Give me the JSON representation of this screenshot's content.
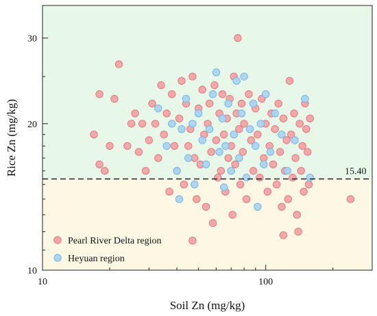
{
  "chart_data": {
    "type": "scatter",
    "title": "",
    "xlabel": "Soil Zn (mg/kg)",
    "ylabel": "Rice Zn (mg/kg)",
    "xscale": "log",
    "yscale": "log",
    "xlim": [
      10,
      300
    ],
    "ylim": [
      10,
      35
    ],
    "x_ticks": [
      10,
      100
    ],
    "x_tick_labels": [
      "10",
      "100"
    ],
    "y_ticks": [
      10,
      20,
      30
    ],
    "y_tick_labels": [
      "10",
      "20",
      "30"
    ],
    "grid": false,
    "legend_position": "bottom-left",
    "colors": {
      "above_region": "#e8f8e8",
      "below_region": "#fdf8e3",
      "pearl_fill": "#f4a3a5",
      "pearl_stroke": "#e07b80",
      "heyuan_fill": "#a9d4f2",
      "heyuan_stroke": "#79b6e3"
    },
    "threshold": {
      "value": 15.4,
      "label": "15.40"
    },
    "series": [
      {
        "name": "Pearl River Delta region",
        "points": [
          [
            17,
            19
          ],
          [
            18,
            23
          ],
          [
            19,
            16
          ],
          [
            20,
            18
          ],
          [
            21,
            22.5
          ],
          [
            22,
            26.5
          ],
          [
            18,
            16.5
          ],
          [
            24,
            18
          ],
          [
            25,
            20
          ],
          [
            26,
            21
          ],
          [
            27,
            17.5
          ],
          [
            28,
            20
          ],
          [
            29,
            16
          ],
          [
            30,
            18.5
          ],
          [
            31,
            22
          ],
          [
            32,
            20
          ],
          [
            33,
            17
          ],
          [
            34,
            24
          ],
          [
            35,
            19
          ],
          [
            36,
            21
          ],
          [
            37,
            14.5
          ],
          [
            38,
            23
          ],
          [
            39,
            18
          ],
          [
            40,
            16
          ],
          [
            41,
            20.5
          ],
          [
            42,
            24.5
          ],
          [
            43,
            15
          ],
          [
            44,
            22
          ],
          [
            45,
            18
          ],
          [
            46,
            19.5
          ],
          [
            47,
            25
          ],
          [
            48,
            17
          ],
          [
            49,
            14
          ],
          [
            50,
            21.5
          ],
          [
            51,
            16.5
          ],
          [
            52,
            23.5
          ],
          [
            53,
            19
          ],
          [
            54,
            13.5
          ],
          [
            55,
            20
          ],
          [
            56,
            22
          ],
          [
            57,
            17.5
          ],
          [
            58,
            12.5
          ],
          [
            59,
            24
          ],
          [
            60,
            18.5
          ],
          [
            61,
            15.5
          ],
          [
            62,
            21
          ],
          [
            63,
            16
          ],
          [
            64,
            23
          ],
          [
            65,
            19
          ],
          [
            66,
            14.5
          ],
          [
            67,
            20.5
          ],
          [
            68,
            17
          ],
          [
            69,
            22.5
          ],
          [
            70,
            18
          ],
          [
            71,
            13
          ],
          [
            72,
            25
          ],
          [
            73,
            16.5
          ],
          [
            74,
            21
          ],
          [
            75,
            30
          ],
          [
            76,
            19.5
          ],
          [
            77,
            15
          ],
          [
            78,
            22
          ],
          [
            79,
            17.5
          ],
          [
            80,
            20
          ],
          [
            82,
            14
          ],
          [
            84,
            23
          ],
          [
            86,
            18.5
          ],
          [
            88,
            16
          ],
          [
            90,
            21.5
          ],
          [
            92,
            19
          ],
          [
            94,
            15.5
          ],
          [
            96,
            22.5
          ],
          [
            98,
            17
          ],
          [
            100,
            20
          ],
          [
            102,
            14.5
          ],
          [
            104,
            18
          ],
          [
            106,
            21
          ],
          [
            108,
            16.5
          ],
          [
            110,
            19.5
          ],
          [
            112,
            15
          ],
          [
            114,
            22
          ],
          [
            116,
            17.5
          ],
          [
            118,
            13.5
          ],
          [
            120,
            20.5
          ],
          [
            122,
            16
          ],
          [
            124,
            18.5
          ],
          [
            126,
            14
          ],
          [
            128,
            24.5
          ],
          [
            130,
            19
          ],
          [
            132,
            15.5
          ],
          [
            134,
            21
          ],
          [
            136,
            17
          ],
          [
            138,
            13
          ],
          [
            140,
            12
          ],
          [
            142,
            20
          ],
          [
            144,
            16
          ],
          [
            146,
            18
          ],
          [
            148,
            14.5
          ],
          [
            150,
            22
          ],
          [
            152,
            19.5
          ],
          [
            154,
            17.5
          ],
          [
            156,
            15
          ],
          [
            158,
            20.5
          ],
          [
            240,
            14
          ],
          [
            47,
            11.5
          ],
          [
            120,
            11.8
          ]
        ]
      },
      {
        "name": "Heyuan region",
        "points": [
          [
            33,
            21.5
          ],
          [
            36,
            18
          ],
          [
            38,
            20
          ],
          [
            40,
            16
          ],
          [
            41,
            14
          ],
          [
            42,
            19.5
          ],
          [
            44,
            22.5
          ],
          [
            45,
            17
          ],
          [
            47,
            20
          ],
          [
            48,
            15
          ],
          [
            50,
            21
          ],
          [
            52,
            18.5
          ],
          [
            54,
            16.5
          ],
          [
            56,
            19.5
          ],
          [
            58,
            23
          ],
          [
            60,
            25.5
          ],
          [
            62,
            17.5
          ],
          [
            64,
            20.5
          ],
          [
            65,
            14.8
          ],
          [
            66,
            18
          ],
          [
            68,
            22
          ],
          [
            70,
            16
          ],
          [
            72,
            19
          ],
          [
            74,
            24.5
          ],
          [
            76,
            17
          ],
          [
            78,
            21
          ],
          [
            80,
            25
          ],
          [
            82,
            15.5
          ],
          [
            85,
            19.5
          ],
          [
            88,
            22
          ],
          [
            90,
            18
          ],
          [
            92,
            13.5
          ],
          [
            95,
            20
          ],
          [
            98,
            16.5
          ],
          [
            100,
            23
          ],
          [
            105,
            17.5
          ],
          [
            110,
            21
          ],
          [
            118,
            19
          ],
          [
            125,
            16
          ],
          [
            135,
            18.5
          ],
          [
            150,
            22.5
          ],
          [
            158,
            15.5
          ]
        ]
      }
    ]
  }
}
